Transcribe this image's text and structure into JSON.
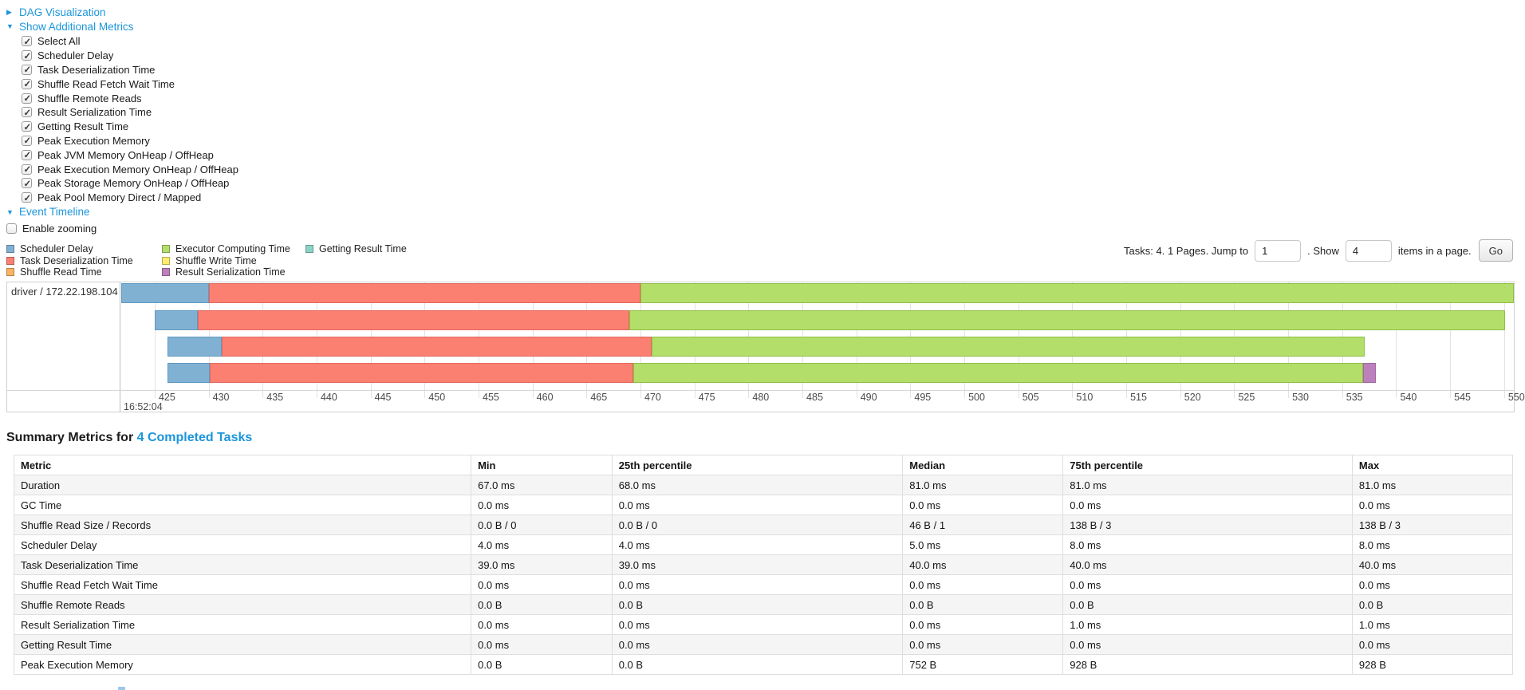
{
  "colors": {
    "link": "#1b95db",
    "scheduler_delay": "#80B1D3",
    "task_deserialization": "#FB8072",
    "shuffle_read": "#FDB462",
    "executor_computing": "#B3DE69",
    "shuffle_write": "#FFED6F",
    "result_serialization": "#BC80BD",
    "getting_result": "#8DD3C7"
  },
  "toggles": {
    "dag": "DAG Visualization",
    "additional_metrics": "Show Additional Metrics",
    "event_timeline": "Event Timeline"
  },
  "metrics_panel": {
    "items": [
      {
        "label": "Select All",
        "checked": true
      },
      {
        "label": "Scheduler Delay",
        "checked": true
      },
      {
        "label": "Task Deserialization Time",
        "checked": true
      },
      {
        "label": "Shuffle Read Fetch Wait Time",
        "checked": true
      },
      {
        "label": "Shuffle Remote Reads",
        "checked": true
      },
      {
        "label": "Result Serialization Time",
        "checked": true
      },
      {
        "label": "Getting Result Time",
        "checked": true
      },
      {
        "label": "Peak Execution Memory",
        "checked": true
      },
      {
        "label": "Peak JVM Memory OnHeap / OffHeap",
        "checked": true
      },
      {
        "label": "Peak Execution Memory OnHeap / OffHeap",
        "checked": true
      },
      {
        "label": "Peak Storage Memory OnHeap / OffHeap",
        "checked": true
      },
      {
        "label": "Peak Pool Memory Direct / Mapped",
        "checked": true
      }
    ]
  },
  "zoom_checkbox": {
    "label": "Enable zooming",
    "checked": false
  },
  "legend": {
    "columns": [
      [
        {
          "key": "scheduler_delay",
          "label": "Scheduler Delay"
        },
        {
          "key": "task_deserialization",
          "label": "Task Deserialization Time"
        },
        {
          "key": "shuffle_read",
          "label": "Shuffle Read Time"
        }
      ],
      [
        {
          "key": "executor_computing",
          "label": "Executor Computing Time"
        },
        {
          "key": "shuffle_write",
          "label": "Shuffle Write Time"
        },
        {
          "key": "result_serialization",
          "label": "Result Serialization Time"
        }
      ],
      [
        {
          "key": "getting_result",
          "label": "Getting Result Time"
        }
      ]
    ]
  },
  "pagination": {
    "tasks_text": "Tasks: 4. 1 Pages. Jump to",
    "jump_value": "1",
    "show_text": ". Show",
    "show_value": "4",
    "items_text": "items in a page.",
    "go_label": "Go"
  },
  "timeline": {
    "executor_label": "driver / 172.22.198.104",
    "axis": {
      "window_start": 421.9,
      "window_end": 550.9,
      "tick_min": 425,
      "tick_max": 550,
      "tick_step": 5,
      "major_label": "16:52:04"
    },
    "tasks": [
      {
        "segments": [
          {
            "type": "scheduler_delay",
            "start": 421.9,
            "end": 430.0
          },
          {
            "type": "task_deserialization",
            "start": 430.0,
            "end": 470.0
          },
          {
            "type": "executor_computing",
            "start": 470.0,
            "end": 550.9
          }
        ]
      },
      {
        "segments": [
          {
            "type": "scheduler_delay",
            "start": 425.0,
            "end": 429.0
          },
          {
            "type": "task_deserialization",
            "start": 429.0,
            "end": 469.0
          },
          {
            "type": "executor_computing",
            "start": 469.0,
            "end": 550.1
          }
        ]
      },
      {
        "segments": [
          {
            "type": "scheduler_delay",
            "start": 426.2,
            "end": 431.2
          },
          {
            "type": "task_deserialization",
            "start": 431.2,
            "end": 471.0
          },
          {
            "type": "executor_computing",
            "start": 471.0,
            "end": 537.1
          }
        ]
      },
      {
        "segments": [
          {
            "type": "scheduler_delay",
            "start": 426.2,
            "end": 430.1
          },
          {
            "type": "task_deserialization",
            "start": 430.1,
            "end": 469.3
          },
          {
            "type": "executor_computing",
            "start": 469.3,
            "end": 536.9
          },
          {
            "type": "result_serialization",
            "start": 536.9,
            "end": 538.1
          }
        ]
      }
    ]
  },
  "summary_section": {
    "heading_prefix": "Summary Metrics for",
    "heading_link": "4 Completed Tasks"
  },
  "summary_table": {
    "columns": [
      "Metric",
      "Min",
      "25th percentile",
      "Median",
      "75th percentile",
      "Max"
    ],
    "rows": [
      {
        "metric": "Duration",
        "values": [
          "67.0 ms",
          "68.0 ms",
          "81.0 ms",
          "81.0 ms",
          "81.0 ms"
        ]
      },
      {
        "metric": "GC Time",
        "values": [
          "0.0 ms",
          "0.0 ms",
          "0.0 ms",
          "0.0 ms",
          "0.0 ms"
        ]
      },
      {
        "metric": "Shuffle Read Size / Records",
        "values": [
          "0.0 B / 0",
          "0.0 B / 0",
          "46 B / 1",
          "138 B / 3",
          "138 B / 3"
        ]
      },
      {
        "metric": "Scheduler Delay",
        "values": [
          "4.0 ms",
          "4.0 ms",
          "5.0 ms",
          "8.0 ms",
          "8.0 ms"
        ]
      },
      {
        "metric": "Task Deserialization Time",
        "values": [
          "39.0 ms",
          "39.0 ms",
          "40.0 ms",
          "40.0 ms",
          "40.0 ms"
        ]
      },
      {
        "metric": "Shuffle Read Fetch Wait Time",
        "values": [
          "0.0 ms",
          "0.0 ms",
          "0.0 ms",
          "0.0 ms",
          "0.0 ms"
        ]
      },
      {
        "metric": "Shuffle Remote Reads",
        "values": [
          "0.0 B",
          "0.0 B",
          "0.0 B",
          "0.0 B",
          "0.0 B"
        ]
      },
      {
        "metric": "Result Serialization Time",
        "values": [
          "0.0 ms",
          "0.0 ms",
          "0.0 ms",
          "1.0 ms",
          "1.0 ms"
        ]
      },
      {
        "metric": "Getting Result Time",
        "values": [
          "0.0 ms",
          "0.0 ms",
          "0.0 ms",
          "0.0 ms",
          "0.0 ms"
        ]
      },
      {
        "metric": "Peak Execution Memory",
        "values": [
          "0.0 B",
          "0.0 B",
          "752 B",
          "928 B",
          "928 B"
        ]
      }
    ]
  }
}
